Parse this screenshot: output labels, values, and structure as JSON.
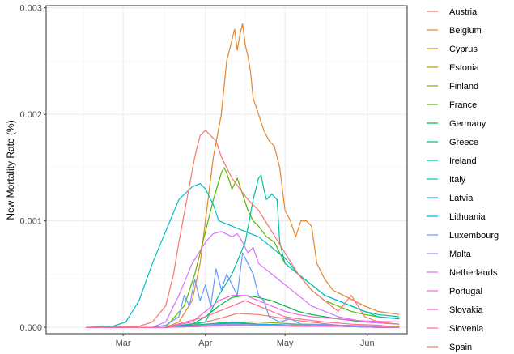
{
  "chart_data": {
    "type": "line",
    "title": "",
    "xlabel": "",
    "ylabel": "New Mortality Rate (%)",
    "x_ticks": [
      "Mar",
      "Apr",
      "May",
      "Jun"
    ],
    "x_tick_days": [
      29,
      60,
      90,
      121
    ],
    "x_range_days": [
      0,
      136
    ],
    "x_origin": "2020-02-01",
    "ylim": [
      -6e-05,
      0.00302
    ],
    "y_ticks": [
      0,
      0.001,
      0.002,
      0.003
    ],
    "y_tick_labels": [
      "0.000",
      "0.001",
      "0.002",
      "0.003"
    ],
    "grid": true,
    "legend_position": "right",
    "series": [
      {
        "name": "Austria",
        "color": "#F8766D",
        "days": [
          15,
          45,
          55,
          65,
          72,
          80,
          88,
          96,
          110,
          125,
          133
        ],
        "values": [
          0,
          0,
          2e-05,
          8e-05,
          0.00013,
          0.00012,
          9e-05,
          6e-05,
          2e-05,
          1e-05,
          1e-05
        ]
      },
      {
        "name": "Belgium",
        "color": "#E6862A",
        "days": [
          15,
          45,
          50,
          55,
          58,
          60,
          63,
          66,
          68,
          70,
          71,
          72,
          73,
          74,
          75,
          76,
          77,
          78,
          80,
          82,
          84,
          86,
          88,
          90,
          92,
          94,
          96,
          98,
          100,
          102,
          105,
          108,
          112,
          116,
          120,
          125,
          133
        ],
        "values": [
          0,
          0,
          5e-05,
          0.00025,
          0.0006,
          0.001,
          0.0016,
          0.002,
          0.0025,
          0.0027,
          0.0028,
          0.0026,
          0.00275,
          0.00285,
          0.00265,
          0.00255,
          0.0024,
          0.00215,
          0.002,
          0.00185,
          0.00175,
          0.0017,
          0.0015,
          0.0011,
          0.001,
          0.00085,
          0.001,
          0.001,
          0.00095,
          0.0006,
          0.00045,
          0.00035,
          0.0003,
          0.00025,
          0.0002,
          0.00015,
          0.00012
        ]
      },
      {
        "name": "Cyprus",
        "color": "#D09400",
        "days": [
          15,
          45,
          60,
          70,
          80,
          95,
          110,
          125,
          133
        ],
        "values": [
          0,
          0,
          2e-05,
          3e-05,
          2e-05,
          1e-05,
          1e-05,
          0,
          0
        ]
      },
      {
        "name": "Estonia",
        "color": "#B79F00",
        "days": [
          15,
          45,
          60,
          70,
          80,
          95,
          110,
          125,
          133
        ],
        "values": [
          0,
          0,
          1e-05,
          5e-05,
          3e-05,
          2e-05,
          1e-05,
          0,
          0
        ]
      },
      {
        "name": "Finland",
        "color": "#93AA00",
        "days": [
          15,
          45,
          60,
          70,
          80,
          95,
          110,
          125,
          133
        ],
        "values": [
          0,
          0,
          1e-05,
          5e-05,
          5e-05,
          3e-05,
          2e-05,
          1e-05,
          1e-05
        ]
      },
      {
        "name": "France",
        "color": "#5EB300",
        "days": [
          15,
          45,
          52,
          56,
          60,
          63,
          66,
          67,
          68,
          70,
          72,
          74,
          76,
          78,
          80,
          83,
          86,
          90,
          95,
          100,
          105,
          110,
          115,
          120,
          125,
          133
        ],
        "values": [
          0,
          0,
          0.0002,
          0.0005,
          0.0009,
          0.0012,
          0.00145,
          0.0015,
          0.00145,
          0.0013,
          0.0014,
          0.00125,
          0.0011,
          0.001,
          0.00095,
          0.00085,
          0.0008,
          0.0006,
          0.0005,
          0.00035,
          0.00025,
          0.0002,
          0.00015,
          0.00012,
          0.0001,
          8e-05
        ]
      },
      {
        "name": "Germany",
        "color": "#00BA38",
        "days": [
          15,
          45,
          55,
          60,
          65,
          70,
          75,
          80,
          85,
          90,
          95,
          100,
          110,
          120,
          133
        ],
        "values": [
          0,
          0,
          3e-05,
          0.0001,
          0.0002,
          0.00028,
          0.0003,
          0.00028,
          0.00025,
          0.0002,
          0.00015,
          0.00012,
          8e-05,
          5e-05,
          3e-05
        ]
      },
      {
        "name": "Greece",
        "color": "#00BF74",
        "days": [
          15,
          45,
          60,
          70,
          80,
          95,
          110,
          125,
          133
        ],
        "values": [
          0,
          0,
          3e-05,
          5e-05,
          3e-05,
          2e-05,
          1e-05,
          0,
          0
        ]
      },
      {
        "name": "Ireland",
        "color": "#00C19F",
        "days": [
          15,
          45,
          60,
          65,
          70,
          75,
          78,
          80,
          81,
          82,
          83,
          85,
          87,
          88,
          90,
          95,
          100,
          105,
          110,
          115,
          120,
          125,
          133
        ],
        "values": [
          0,
          0,
          5e-05,
          0.0003,
          0.0005,
          0.0008,
          0.0012,
          0.0014,
          0.00143,
          0.0013,
          0.0012,
          0.00125,
          0.0012,
          0.0008,
          0.0006,
          0.0005,
          0.0004,
          0.0003,
          0.00025,
          0.0002,
          0.00015,
          0.00012,
          0.0001
        ]
      },
      {
        "name": "Italy",
        "color": "#00BFC4",
        "days": [
          15,
          25,
          30,
          35,
          40,
          45,
          50,
          55,
          58,
          60,
          63,
          65,
          70,
          75,
          80,
          85,
          90,
          95,
          100,
          105,
          110,
          115,
          120,
          125,
          133
        ],
        "values": [
          0,
          1e-05,
          5e-05,
          0.00025,
          0.0006,
          0.0009,
          0.0012,
          0.00132,
          0.00135,
          0.0013,
          0.00115,
          0.001,
          0.00095,
          0.0009,
          0.00085,
          0.00075,
          0.00065,
          0.0005,
          0.0004,
          0.0003,
          0.00025,
          0.0002,
          0.00015,
          0.0001,
          8e-05
        ]
      },
      {
        "name": "Latvia",
        "color": "#00B9E3",
        "days": [
          15,
          45,
          60,
          70,
          80,
          95,
          110,
          125,
          133
        ],
        "values": [
          0,
          0,
          1e-05,
          2e-05,
          2e-05,
          1e-05,
          1e-05,
          0,
          0
        ]
      },
      {
        "name": "Lithuania",
        "color": "#00ADFA",
        "days": [
          15,
          45,
          60,
          70,
          80,
          95,
          110,
          125,
          133
        ],
        "values": [
          0,
          0,
          2e-05,
          4e-05,
          3e-05,
          2e-05,
          1e-05,
          0,
          0
        ]
      },
      {
        "name": "Luxembourg",
        "color": "#619CFF",
        "days": [
          15,
          40,
          45,
          50,
          52,
          54,
          56,
          58,
          60,
          62,
          64,
          66,
          68,
          70,
          72,
          74,
          76,
          78,
          80,
          82,
          84,
          88,
          92,
          96,
          100,
          110,
          120,
          133
        ],
        "values": [
          0,
          0,
          2e-05,
          0.0001,
          0.0003,
          0.0002,
          0.00045,
          0.00025,
          0.0004,
          0.0002,
          0.00055,
          0.00035,
          0.0005,
          0.0004,
          0.0003,
          0.0007,
          0.0006,
          0.0005,
          0.0003,
          0.00025,
          0.0001,
          5e-05,
          8e-05,
          3e-05,
          3e-05,
          2e-05,
          1e-05,
          0
        ]
      },
      {
        "name": "Malta",
        "color": "#AE87FF",
        "days": [
          15,
          45,
          60,
          70,
          80,
          95,
          110,
          125,
          133
        ],
        "values": [
          0,
          0,
          2e-05,
          3e-05,
          2e-05,
          2e-05,
          1e-05,
          1e-05,
          0
        ]
      },
      {
        "name": "Netherlands",
        "color": "#DB72FB",
        "days": [
          15,
          40,
          45,
          50,
          55,
          60,
          63,
          66,
          70,
          72,
          74,
          76,
          78,
          80,
          85,
          90,
          95,
          100,
          110,
          120,
          133
        ],
        "values": [
          0,
          0,
          5e-05,
          0.0003,
          0.0006,
          0.0008,
          0.00088,
          0.0009,
          0.00085,
          0.00088,
          0.0008,
          0.0007,
          0.00075,
          0.0006,
          0.0005,
          0.0004,
          0.0003,
          0.0002,
          0.0001,
          5e-05,
          3e-05
        ]
      },
      {
        "name": "Portugal",
        "color": "#F564E3",
        "days": [
          15,
          45,
          55,
          60,
          65,
          70,
          75,
          80,
          85,
          90,
          95,
          100,
          110,
          120,
          133
        ],
        "values": [
          0,
          0,
          5e-05,
          0.00015,
          0.00025,
          0.0003,
          0.0003,
          0.00025,
          0.0002,
          0.00015,
          0.00012,
          0.0001,
          8e-05,
          6e-05,
          5e-05
        ]
      },
      {
        "name": "Slovakia",
        "color": "#FF61C3",
        "days": [
          15,
          45,
          60,
          70,
          80,
          95,
          110,
          125,
          133
        ],
        "values": [
          0,
          0,
          1e-05,
          2e-05,
          2e-05,
          1e-05,
          1e-05,
          0,
          0
        ]
      },
      {
        "name": "Slovenia",
        "color": "#FF6C91",
        "days": [
          15,
          45,
          60,
          70,
          75,
          80,
          85,
          90,
          95,
          105,
          115,
          125,
          133
        ],
        "values": [
          0,
          0,
          0.0001,
          0.0002,
          0.00025,
          0.0002,
          0.00015,
          0.0001,
          8e-05,
          5e-05,
          3e-05,
          2e-05,
          0
        ]
      },
      {
        "name": "Spain",
        "color": "#F8766D",
        "days": [
          15,
          35,
          40,
          45,
          48,
          50,
          53,
          56,
          58,
          60,
          62,
          64,
          66,
          68,
          70,
          73,
          76,
          80,
          85,
          90,
          95,
          100,
          105,
          110,
          115,
          120,
          125,
          133
        ],
        "values": [
          0,
          1e-05,
          5e-05,
          0.0002,
          0.0005,
          0.0008,
          0.0012,
          0.0016,
          0.0018,
          0.00185,
          0.0018,
          0.00175,
          0.0016,
          0.0015,
          0.0014,
          0.0013,
          0.0012,
          0.0011,
          0.0009,
          0.0007,
          0.0005,
          0.00035,
          0.00025,
          0.00015,
          0.0003,
          0.0001,
          5e-05,
          3e-05
        ]
      }
    ]
  }
}
